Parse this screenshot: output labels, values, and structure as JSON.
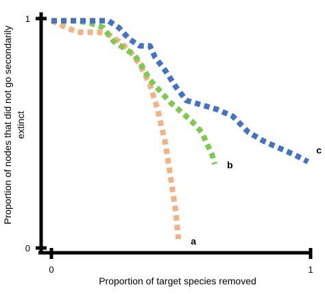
{
  "chart_data": {
    "type": "line",
    "xlabel": "Proportion of target species removed",
    "ylabel_line1": "Proportion of nodes that did not go secondarily",
    "ylabel_line2": "extinct",
    "xlim": [
      0,
      1
    ],
    "ylim": [
      0,
      1
    ],
    "x_ticks": [
      {
        "value": 0,
        "label": "0"
      },
      {
        "value": 1,
        "label": "1"
      }
    ],
    "y_ticks": [
      {
        "value": 0,
        "label": "0"
      },
      {
        "value": 1,
        "label": "1"
      }
    ],
    "grid": false,
    "line_style": "dotted",
    "series": [
      {
        "name": "a",
        "color": "#f4b183",
        "points": [
          [
            0.0,
            0.99
          ],
          [
            0.06,
            0.96
          ],
          [
            0.1,
            0.94
          ],
          [
            0.14,
            0.94
          ],
          [
            0.18,
            0.94
          ],
          [
            0.22,
            0.93
          ],
          [
            0.26,
            0.9
          ],
          [
            0.3,
            0.86
          ],
          [
            0.34,
            0.8
          ],
          [
            0.38,
            0.71
          ],
          [
            0.41,
            0.6
          ],
          [
            0.44,
            0.45
          ],
          [
            0.46,
            0.3
          ],
          [
            0.48,
            0.15
          ],
          [
            0.49,
            0.03
          ]
        ]
      },
      {
        "name": "b",
        "color": "#7ec94f",
        "points": [
          [
            0.0,
            0.99
          ],
          [
            0.05,
            0.99
          ],
          [
            0.1,
            0.99
          ],
          [
            0.15,
            0.98
          ],
          [
            0.2,
            0.96
          ],
          [
            0.24,
            0.9
          ],
          [
            0.28,
            0.87
          ],
          [
            0.32,
            0.84
          ],
          [
            0.35,
            0.79
          ],
          [
            0.38,
            0.73
          ],
          [
            0.42,
            0.68
          ],
          [
            0.46,
            0.63
          ],
          [
            0.5,
            0.59
          ],
          [
            0.54,
            0.55
          ],
          [
            0.58,
            0.5
          ],
          [
            0.6,
            0.45
          ],
          [
            0.62,
            0.4
          ],
          [
            0.63,
            0.36
          ]
        ]
      },
      {
        "name": "c",
        "color": "#4472c4",
        "points": [
          [
            0.0,
            0.99
          ],
          [
            0.08,
            0.99
          ],
          [
            0.16,
            0.99
          ],
          [
            0.22,
            0.99
          ],
          [
            0.26,
            0.96
          ],
          [
            0.3,
            0.91
          ],
          [
            0.34,
            0.88
          ],
          [
            0.38,
            0.88
          ],
          [
            0.4,
            0.83
          ],
          [
            0.44,
            0.77
          ],
          [
            0.48,
            0.7
          ],
          [
            0.52,
            0.64
          ],
          [
            0.58,
            0.62
          ],
          [
            0.64,
            0.6
          ],
          [
            0.7,
            0.57
          ],
          [
            0.76,
            0.5
          ],
          [
            0.82,
            0.46
          ],
          [
            0.88,
            0.43
          ],
          [
            0.94,
            0.4
          ],
          [
            0.99,
            0.37
          ]
        ]
      }
    ]
  }
}
